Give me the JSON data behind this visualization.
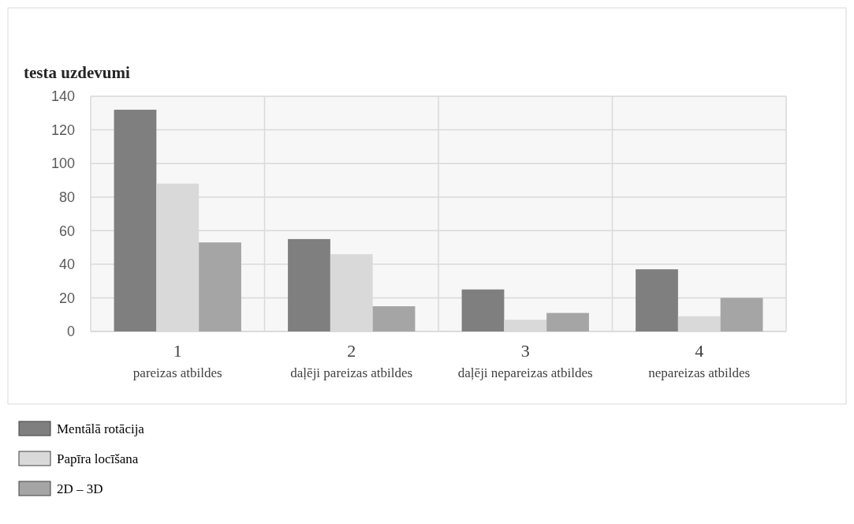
{
  "chart_data": {
    "type": "bar",
    "ylabel": "testa uzdevumi",
    "categories": [
      "1\npareizas atbildes",
      "2\ndaļēji pareizas atbildes",
      "3\ndaļēji nepareizas atbildes",
      "4\nnepareizas atbildes"
    ],
    "series": [
      {
        "name": "Mentālā rotācija",
        "color": "#7f7f7f",
        "values": [
          132,
          55,
          25,
          37
        ]
      },
      {
        "name": "Papīra locīšana",
        "color": "#d9d9d9",
        "values": [
          88,
          46,
          7,
          9
        ]
      },
      {
        "name": "2D – 3D",
        "color": "#a5a5a5",
        "values": [
          53,
          15,
          11,
          20
        ]
      }
    ],
    "ylim": [
      0,
      140
    ],
    "yticks": [
      0,
      20,
      40,
      60,
      80,
      100,
      120,
      140
    ],
    "grid": true,
    "legend": "bottom left"
  }
}
